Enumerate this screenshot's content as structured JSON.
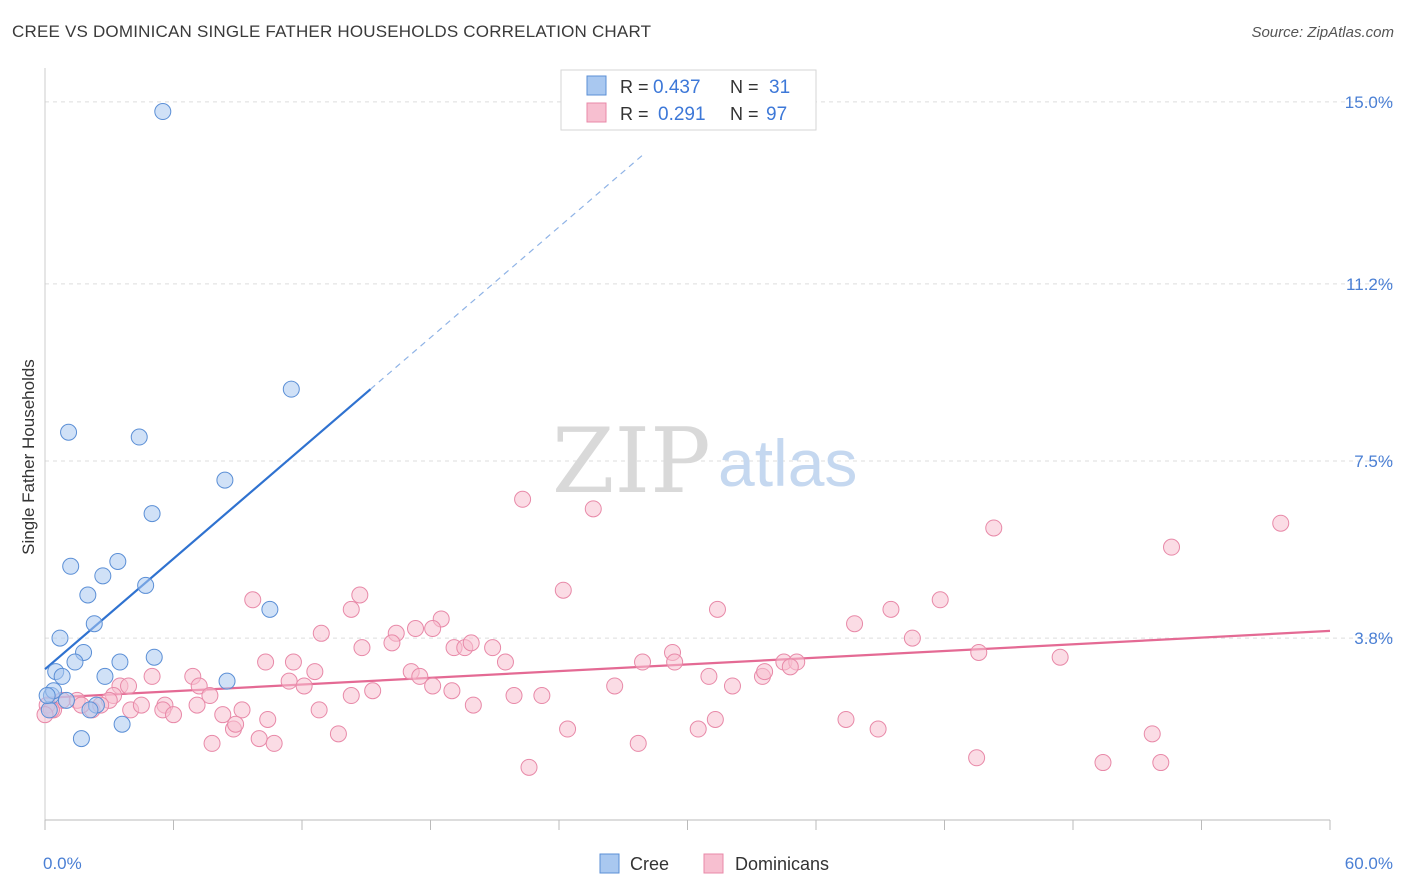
{
  "header": {
    "title": "CREE VS DOMINICAN SINGLE FATHER HOUSEHOLDS CORRELATION CHART",
    "source": "Source: ZipAtlas.com"
  },
  "watermark": {
    "zip": "ZIP",
    "atlas": "atlas"
  },
  "colors": {
    "cree_fill": "#a9c8f0",
    "cree_stroke": "#5b8fd6",
    "cree_line": "#2f72d0",
    "dom_fill": "#f7bfd0",
    "dom_stroke": "#e889a8",
    "dom_line": "#e46a94",
    "tick_text": "#4a7fd4",
    "grid": "#dddddd"
  },
  "chart_data": {
    "type": "scatter",
    "title": "CREE VS DOMINICAN SINGLE FATHER HOUSEHOLDS CORRELATION CHART",
    "xlabel": "",
    "ylabel": "Single Father Households",
    "xlim": [
      0,
      60
    ],
    "ylim": [
      0,
      15.5
    ],
    "x_tick_labels": [
      "0.0%",
      "60.0%"
    ],
    "y_ticks": [
      3.8,
      7.5,
      11.2,
      15.0
    ],
    "y_tick_labels": [
      "3.8%",
      "7.5%",
      "11.2%",
      "15.0%"
    ],
    "legend": [
      {
        "name": "Cree",
        "r_label": "R =",
        "r_value": "0.437",
        "n_label": "N =",
        "n_value": "31"
      },
      {
        "name": "Dominicans",
        "r_label": "R =",
        "r_value": "0.291",
        "n_label": "N =",
        "n_value": "97"
      }
    ],
    "series": [
      {
        "name": "Cree",
        "trend": {
          "x0": 0,
          "y0": 3.15,
          "x1": 15.2,
          "y1": 9.0,
          "dash_to_x": 28.0
        },
        "points": [
          [
            5.5,
            14.8
          ],
          [
            11.5,
            9.0
          ],
          [
            1.1,
            8.1
          ],
          [
            4.4,
            8.0
          ],
          [
            8.4,
            7.1
          ],
          [
            5.0,
            6.4
          ],
          [
            1.2,
            5.3
          ],
          [
            3.4,
            5.4
          ],
          [
            2.7,
            5.1
          ],
          [
            2.0,
            4.7
          ],
          [
            4.7,
            4.9
          ],
          [
            10.5,
            4.4
          ],
          [
            2.3,
            4.1
          ],
          [
            0.7,
            3.8
          ],
          [
            1.8,
            3.5
          ],
          [
            5.1,
            3.4
          ],
          [
            3.5,
            3.3
          ],
          [
            1.4,
            3.3
          ],
          [
            0.5,
            3.1
          ],
          [
            0.8,
            3.0
          ],
          [
            2.8,
            3.0
          ],
          [
            8.5,
            2.9
          ],
          [
            0.3,
            2.6
          ],
          [
            0.4,
            2.7
          ],
          [
            1.0,
            2.5
          ],
          [
            2.4,
            2.4
          ],
          [
            2.1,
            2.3
          ],
          [
            0.2,
            2.3
          ],
          [
            3.6,
            2.0
          ],
          [
            1.7,
            1.7
          ],
          [
            0.1,
            2.6
          ]
        ]
      },
      {
        "name": "Dominicans",
        "trend": {
          "x0": 0,
          "y0": 2.55,
          "x1": 60,
          "y1": 3.95
        },
        "points": [
          [
            22.3,
            6.7
          ],
          [
            25.6,
            6.5
          ],
          [
            44.3,
            6.1
          ],
          [
            57.7,
            6.2
          ],
          [
            52.6,
            5.7
          ],
          [
            24.2,
            4.8
          ],
          [
            9.7,
            4.6
          ],
          [
            14.7,
            4.7
          ],
          [
            14.3,
            4.4
          ],
          [
            41.8,
            4.6
          ],
          [
            31.4,
            4.4
          ],
          [
            39.5,
            4.4
          ],
          [
            18.5,
            4.2
          ],
          [
            37.8,
            4.1
          ],
          [
            12.9,
            3.9
          ],
          [
            16.4,
            3.9
          ],
          [
            17.3,
            4.0
          ],
          [
            18.1,
            4.0
          ],
          [
            40.5,
            3.8
          ],
          [
            16.2,
            3.7
          ],
          [
            14.8,
            3.6
          ],
          [
            19.1,
            3.6
          ],
          [
            19.6,
            3.6
          ],
          [
            19.9,
            3.7
          ],
          [
            20.9,
            3.6
          ],
          [
            29.3,
            3.5
          ],
          [
            43.6,
            3.5
          ],
          [
            47.4,
            3.4
          ],
          [
            11.6,
            3.3
          ],
          [
            10.3,
            3.3
          ],
          [
            21.5,
            3.3
          ],
          [
            29.4,
            3.3
          ],
          [
            27.9,
            3.3
          ],
          [
            34.5,
            3.3
          ],
          [
            35.1,
            3.3
          ],
          [
            12.6,
            3.1
          ],
          [
            17.1,
            3.1
          ],
          [
            5.0,
            3.0
          ],
          [
            6.9,
            3.0
          ],
          [
            11.4,
            2.9
          ],
          [
            17.5,
            3.0
          ],
          [
            31.0,
            3.0
          ],
          [
            33.5,
            3.0
          ],
          [
            33.6,
            3.1
          ],
          [
            34.8,
            3.2
          ],
          [
            3.5,
            2.8
          ],
          [
            3.9,
            2.8
          ],
          [
            7.2,
            2.8
          ],
          [
            7.7,
            2.6
          ],
          [
            12.1,
            2.8
          ],
          [
            15.3,
            2.7
          ],
          [
            18.1,
            2.8
          ],
          [
            19.0,
            2.7
          ],
          [
            21.9,
            2.6
          ],
          [
            26.6,
            2.8
          ],
          [
            32.1,
            2.8
          ],
          [
            3.2,
            2.6
          ],
          [
            3.0,
            2.5
          ],
          [
            5.6,
            2.4
          ],
          [
            9.2,
            2.3
          ],
          [
            7.1,
            2.4
          ],
          [
            14.3,
            2.6
          ],
          [
            23.2,
            2.6
          ],
          [
            5.5,
            2.3
          ],
          [
            4.0,
            2.3
          ],
          [
            2.2,
            2.3
          ],
          [
            4.5,
            2.4
          ],
          [
            6.0,
            2.2
          ],
          [
            8.3,
            2.2
          ],
          [
            10.4,
            2.1
          ],
          [
            12.8,
            2.3
          ],
          [
            20.0,
            2.4
          ],
          [
            1.5,
            2.5
          ],
          [
            0.8,
            2.5
          ],
          [
            1.7,
            2.4
          ],
          [
            2.6,
            2.4
          ],
          [
            0.4,
            2.3
          ],
          [
            0.1,
            2.4
          ],
          [
            8.8,
            1.9
          ],
          [
            8.9,
            2.0
          ],
          [
            13.7,
            1.8
          ],
          [
            24.4,
            1.9
          ],
          [
            30.5,
            1.9
          ],
          [
            31.3,
            2.1
          ],
          [
            37.4,
            2.1
          ],
          [
            38.9,
            1.9
          ],
          [
            51.7,
            1.8
          ],
          [
            7.8,
            1.6
          ],
          [
            10.0,
            1.7
          ],
          [
            10.7,
            1.6
          ],
          [
            27.7,
            1.6
          ],
          [
            43.5,
            1.3
          ],
          [
            49.4,
            1.2
          ],
          [
            52.1,
            1.2
          ],
          [
            22.6,
            1.1
          ],
          [
            0.3,
            2.3
          ],
          [
            0.0,
            2.2
          ]
        ]
      }
    ]
  }
}
